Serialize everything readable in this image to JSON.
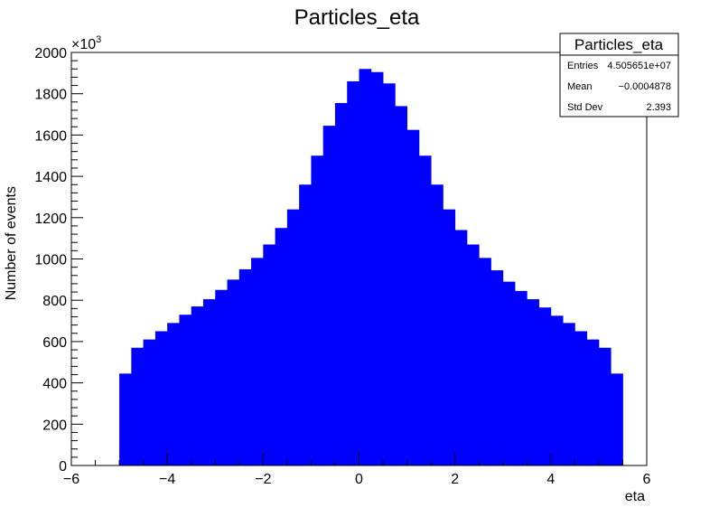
{
  "chart_data": {
    "type": "bar",
    "title": "Particles_eta",
    "xlabel": "eta",
    "ylabel": "Number of events",
    "y_multiplier_label": "×10",
    "y_multiplier_exp": "3",
    "xlim": [
      -6,
      6
    ],
    "ylim": [
      0,
      2000
    ],
    "x_ticks": [
      -6,
      -4,
      -2,
      0,
      2,
      4,
      6
    ],
    "x_tick_labels": [
      "−6",
      "−4",
      "−2",
      "0",
      "2",
      "4",
      "6"
    ],
    "y_ticks": [
      0,
      200,
      400,
      600,
      800,
      1000,
      1200,
      1400,
      1600,
      1800,
      2000
    ],
    "y_tick_labels": [
      "0",
      "200",
      "400",
      "600",
      "800",
      "1000",
      "1200",
      "1400",
      "1600",
      "1800",
      "2000"
    ],
    "bin_edges_start": -5,
    "bin_width": 0.25,
    "values": [
      445,
      570,
      610,
      650,
      690,
      730,
      770,
      805,
      850,
      900,
      950,
      1005,
      1070,
      1150,
      1240,
      1360,
      1500,
      1645,
      1755,
      1860,
      1920,
      1905,
      1850,
      1740,
      1625,
      1500,
      1360,
      1240,
      1140,
      1070,
      1005,
      945,
      890,
      845,
      805,
      765,
      725,
      690,
      650,
      610,
      570,
      445
    ],
    "fill_color": "#0000ff",
    "stats": {
      "title": "Particles_eta",
      "rows": [
        {
          "label": "Entries",
          "value": "4.505651e+07"
        },
        {
          "label": "Mean",
          "value": "−0.0004878"
        },
        {
          "label": "Std Dev",
          "value": "2.393"
        }
      ]
    }
  }
}
